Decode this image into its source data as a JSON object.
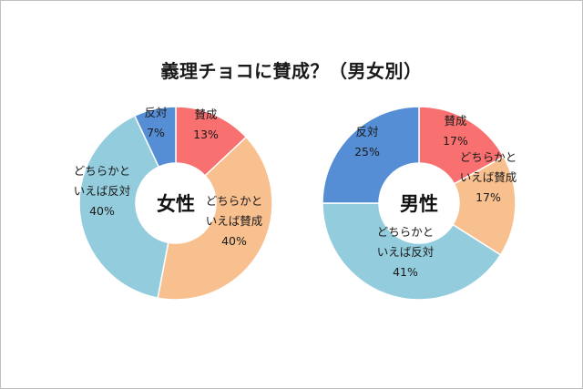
{
  "chart_data": {
    "title": "義理チョコに賛成？（男女別）",
    "charts": [
      {
        "type": "pie",
        "center_label": "女性",
        "slices": [
          {
            "name": "賛成",
            "value": 13,
            "color": "#F87070",
            "label_lines": [
              "賛成",
              "13%"
            ]
          },
          {
            "name": "どちらかといえば賛成",
            "value": 40,
            "color": "#F8C08E",
            "label_lines": [
              "どちらかと",
              "いえば賛成",
              "40%"
            ]
          },
          {
            "name": "どちらかといえば反対",
            "value": 40,
            "color": "#93CDDD",
            "label_lines": [
              "どちらかと",
              "いえば反対",
              "40%"
            ]
          },
          {
            "name": "反対",
            "value": 7,
            "color": "#558ED5",
            "label_lines": [
              "反対",
              "7%"
            ]
          }
        ]
      },
      {
        "type": "pie",
        "center_label": "男性",
        "slices": [
          {
            "name": "賛成",
            "value": 17,
            "color": "#F87070",
            "label_lines": [
              "賛成",
              "17%"
            ]
          },
          {
            "name": "どちらかといえば賛成",
            "value": 17,
            "color": "#F8C08E",
            "label_lines": [
              "どちらかと",
              "いえば賛成",
              "17%"
            ]
          },
          {
            "name": "どちらかといえば反対",
            "value": 41,
            "color": "#93CDDD",
            "label_lines": [
              "どちらかと",
              "いえば反対",
              "41%"
            ]
          },
          {
            "name": "反対",
            "value": 25,
            "color": "#558ED5",
            "label_lines": [
              "反対",
              "25%"
            ]
          }
        ]
      }
    ]
  }
}
